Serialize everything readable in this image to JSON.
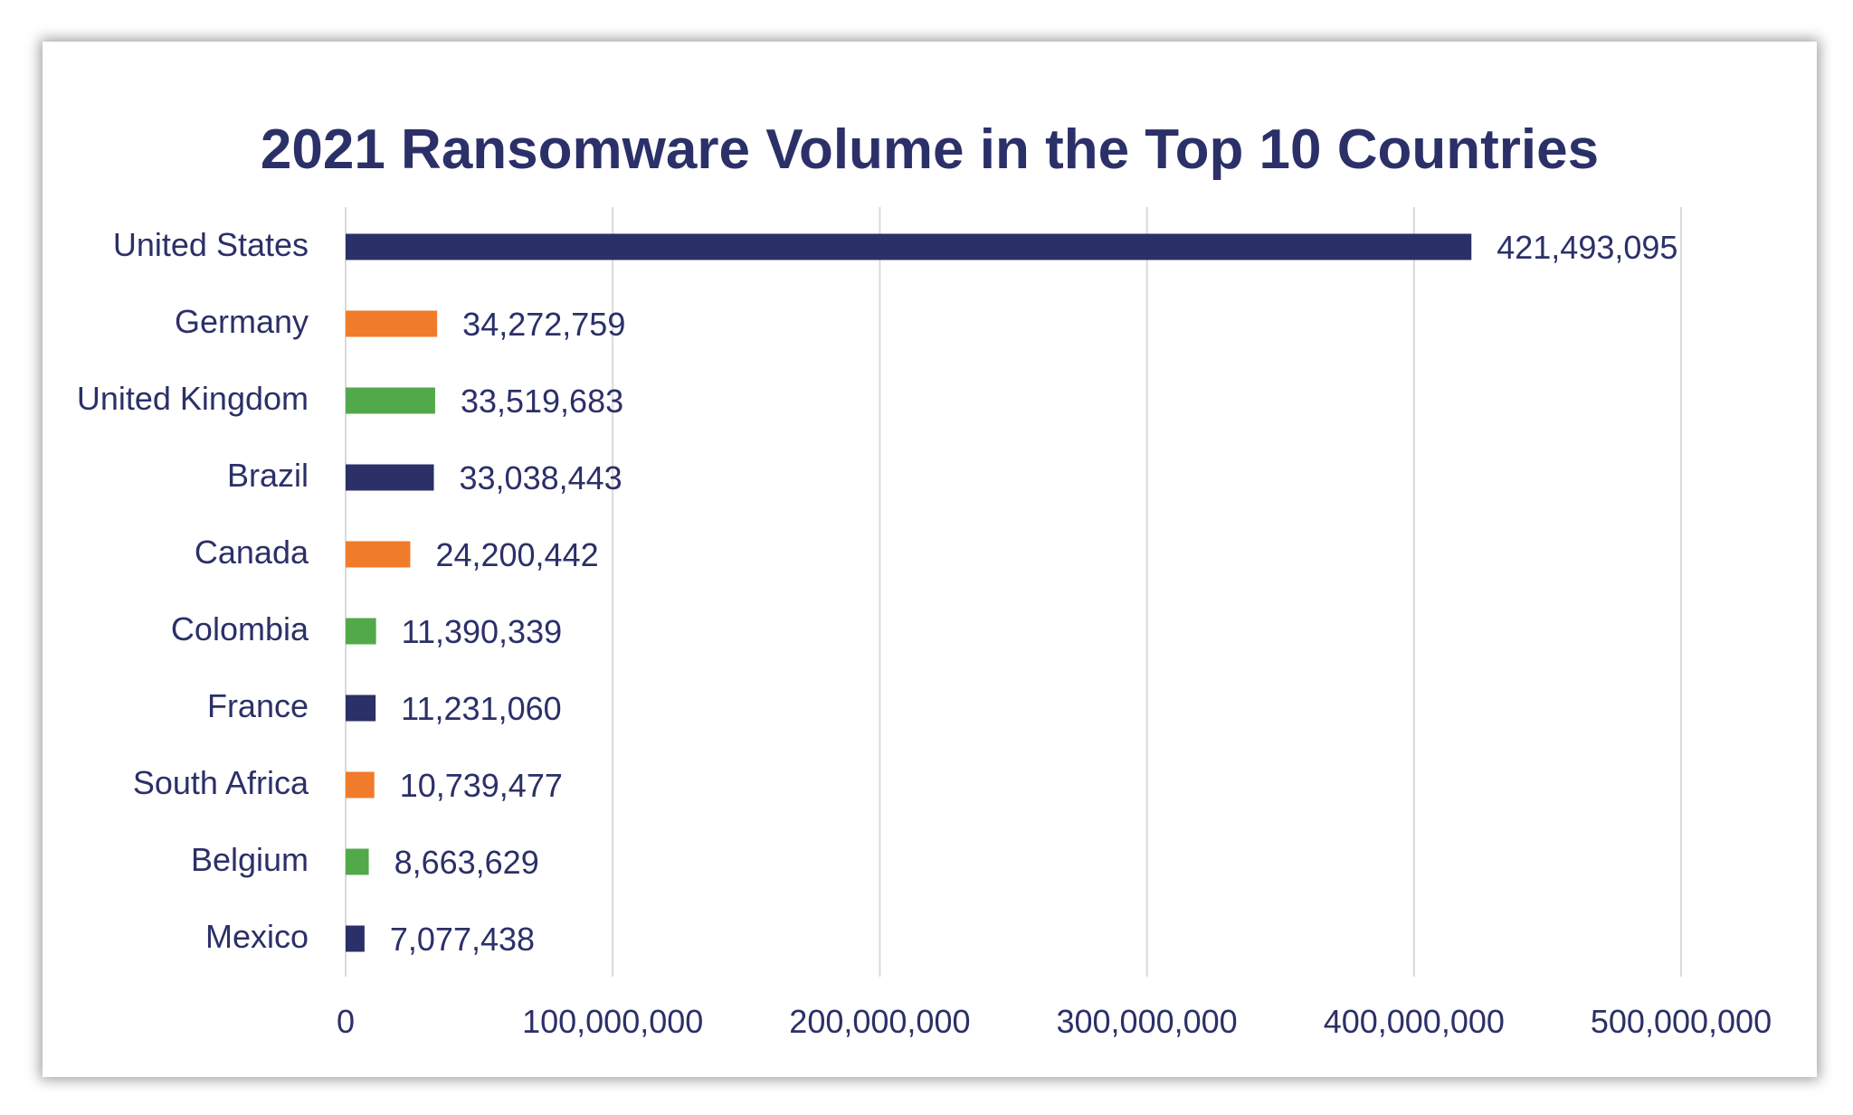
{
  "chart_data": {
    "type": "bar",
    "orientation": "horizontal",
    "title": "2021 Ransomware Volume in the Top 10 Countries",
    "categories": [
      "United States",
      "Germany",
      "United Kingdom",
      "Brazil",
      "Canada",
      "Colombia",
      "France",
      "South Africa",
      "Belgium",
      "Mexico"
    ],
    "values": [
      421493095,
      34272759,
      33519683,
      33038443,
      24200442,
      11390339,
      11231060,
      10739477,
      8663629,
      7077438
    ],
    "data_labels": [
      "421,493,095",
      "34,272,759",
      "33,519,683",
      "33,038,443",
      "24,200,442",
      "11,390,339",
      "11,231,060",
      "10,739,477",
      "8,663,629",
      "7,077,438"
    ],
    "bar_colors": [
      "#2b3068",
      "#f07b2b",
      "#52a94a",
      "#2b3068",
      "#f07b2b",
      "#52a94a",
      "#2b3068",
      "#f07b2b",
      "#52a94a",
      "#2b3068"
    ],
    "xlim": [
      0,
      500000000
    ],
    "x_ticks": [
      0,
      100000000,
      200000000,
      300000000,
      400000000,
      500000000
    ],
    "x_tick_labels": [
      "0",
      "100,000,000",
      "200,000,000",
      "300,000,000",
      "400,000,000",
      "500,000,000"
    ],
    "xlabel": "",
    "ylabel": "",
    "grid": "vertical",
    "legend": "none"
  },
  "colors": {
    "title": "#2b3068",
    "text": "#2b3068",
    "gridline": "#d9d9d9"
  }
}
